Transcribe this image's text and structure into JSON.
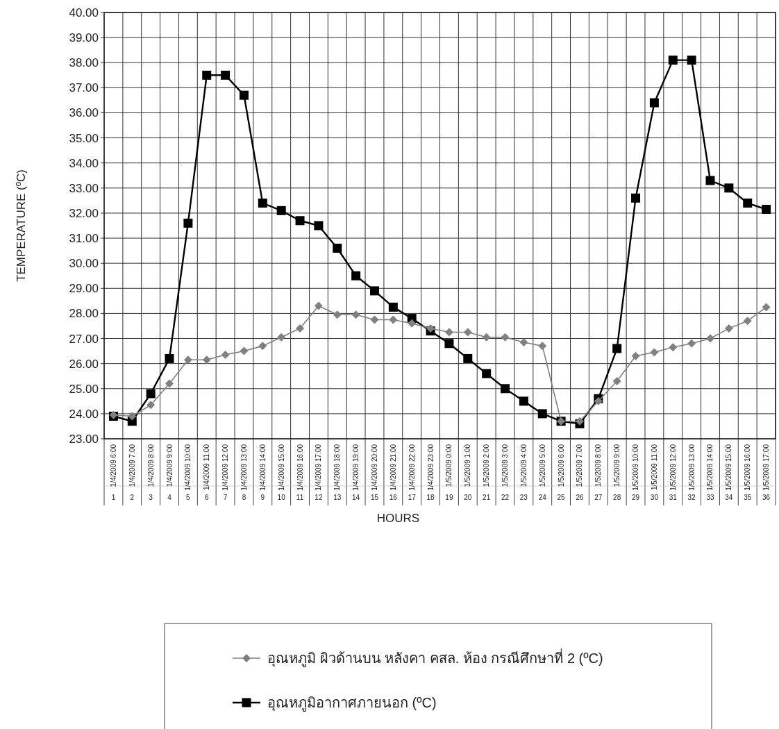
{
  "chart_data": {
    "type": "line",
    "xlabel": "HOURS",
    "ylabel": "TEMPERATURE (ºC)",
    "categories": [
      "1/4/2009 6:00\n1",
      "1/4/2009 7:00\n2",
      "1/4/2009 8:00\n3",
      "1/4/2009 9:00\n4",
      "1/4/2009 10:00\n5",
      "1/4/2009 11:00\n6",
      "1/4/2009 12:00\n7",
      "1/4/2009 13:00\n8",
      "1/4/2009 14:00\n9",
      "1/4/2009 15:00\n10",
      "1/4/2009 16:00\n11",
      "1/4/2009 17:00\n12",
      "1/4/2009 18:00\n13",
      "1/4/2009 19:00\n14",
      "1/4/2009 20:00\n15",
      "1/4/2009 21:00\n16",
      "1/4/2009 22:00\n17",
      "1/4/2009 23:00\n18",
      "1/5/2009 0:00\n19",
      "1/5/2009 1:00\n20",
      "1/5/2009 2:00\n21",
      "1/5/2009 3:00\n22",
      "1/5/2009 4:00\n23",
      "1/5/2009 5:00\n24",
      "1/5/2009 6:00\n25",
      "1/5/2009 7:00\n26",
      "1/5/2009 8:00\n27",
      "1/5/2009 9:00\n28",
      "1/5/2009 10:00\n29",
      "1/5/2009 11:00\n30",
      "1/5/2009 12:00\n31",
      "1/5/2009 13:00\n32",
      "1/5/2009 14:00\n33",
      "1/5/2009 15:00\n34",
      "1/5/2009 16:00\n35",
      "1/5/2009 17:00\n36"
    ],
    "series": [
      {
        "name": "อุณหภูมิ ผิวด้านบน หลังคา คสล. ห้อง กรณีศึกษาที่ 2 (ºC)",
        "color": "#808080",
        "marker": "diamond",
        "values": [
          23.95,
          23.9,
          24.35,
          25.2,
          26.15,
          26.15,
          26.35,
          26.5,
          26.7,
          27.05,
          27.4,
          28.3,
          27.95,
          27.95,
          27.75,
          27.75,
          27.6,
          27.4,
          27.25,
          27.25,
          27.05,
          27.05,
          26.85,
          26.7,
          23.7,
          23.7,
          24.5,
          25.3,
          26.3,
          26.45,
          26.65,
          26.8,
          27.0,
          27.4,
          27.7,
          28.25
        ]
      },
      {
        "name": "อุณหภูมิอากาศภายนอก (ºC)",
        "color": "#000000",
        "marker": "square",
        "values": [
          23.9,
          23.7,
          24.8,
          26.2,
          31.6,
          37.5,
          37.5,
          36.7,
          32.4,
          32.1,
          31.7,
          31.5,
          30.6,
          29.5,
          28.9,
          28.25,
          27.8,
          27.3,
          26.8,
          26.2,
          25.6,
          25.0,
          24.5,
          24.0,
          23.7,
          23.6,
          24.6,
          26.6,
          32.6,
          36.4,
          38.1,
          38.1,
          33.3,
          33.0,
          32.4,
          32.15
        ]
      }
    ],
    "ylim": [
      23,
      40
    ],
    "yticks": [
      {
        "value": 23,
        "label": "23.00"
      },
      {
        "value": 24,
        "label": "24.00"
      },
      {
        "value": 25,
        "label": "25.00"
      },
      {
        "value": 26,
        "label": "26.00"
      },
      {
        "value": 27,
        "label": "27.00"
      },
      {
        "value": 28,
        "label": "28.00"
      },
      {
        "value": 29,
        "label": "29.00"
      },
      {
        "value": 30,
        "label": "30.00"
      },
      {
        "value": 31,
        "label": "31.00"
      },
      {
        "value": 32,
        "label": "32.00"
      },
      {
        "value": 33,
        "label": "33.00"
      },
      {
        "value": 34,
        "label": "34.00"
      },
      {
        "value": 35,
        "label": "35.00"
      },
      {
        "value": 36,
        "label": "36.00"
      },
      {
        "value": 37,
        "label": "37.00"
      },
      {
        "value": 38,
        "label": "38.00"
      },
      {
        "value": 39,
        "label": "39.00"
      },
      {
        "value": 40,
        "label": "40.00"
      }
    ],
    "grid": true,
    "legend": "bottom",
    "line_style": "solid"
  }
}
